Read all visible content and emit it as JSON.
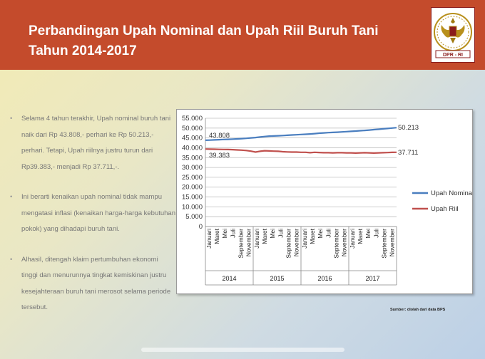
{
  "slide": {
    "title_line1": "Perbandingan Upah Nominal dan Upah Riil Buruh Tani",
    "title_line2": "Tahun 2014-2017",
    "logo_text": "DPR - RI",
    "bullet_symbol": "•",
    "bullets": [
      "Selama 4 tahun terakhir, Upah nominal buruh tani naik dari Rp 43.808,- perhari ke Rp 50.213,- perhari. Tetapi, Upah riilnya justru turun dari Rp39.383,- menjadi Rp 37.711,-.",
      "Ini berarti kenaikan upah nominal tidak mampu mengatasi inflasi (kenaikan harga-harga kebutuhan pokok) yang dihadapi buruh tani.",
      "Alhasil, ditengah klaim pertumbuhan ekonomi tinggi dan menurunnya tingkat kemiskinan justru kesejahteraan buruh tani merosot selama periode tersebut."
    ],
    "source": "Sumber: diolah dari data BPS"
  },
  "colors": {
    "header": "#c44b2c",
    "nominal": "#4a7ebf",
    "riil": "#c0504d"
  },
  "chart_data": {
    "type": "line",
    "years": [
      "2014",
      "2015",
      "2016",
      "2017"
    ],
    "month_ticks": [
      "Januari",
      "Maret",
      "Mei",
      "Juli",
      "September",
      "November"
    ],
    "ylim": [
      0,
      55000
    ],
    "yticks": [
      "0",
      "5.000",
      "10.000",
      "15.000",
      "20.000",
      "25.000",
      "30.000",
      "35.000",
      "40.000",
      "45.000",
      "50.000",
      "55.000"
    ],
    "grid": true,
    "legend_position": "right",
    "series": [
      {
        "name": "Upah Nominal",
        "color": "#4a7ebf",
        "start_label": "43.808",
        "end_label": "50.213",
        "values": [
          43808,
          43900,
          44000,
          44100,
          44200,
          44300,
          44400,
          44500,
          44650,
          44800,
          45000,
          45200,
          45500,
          45700,
          45900,
          46000,
          46100,
          46200,
          46350,
          46500,
          46600,
          46750,
          46850,
          47000,
          47200,
          47400,
          47550,
          47700,
          47800,
          47900,
          48050,
          48200,
          48350,
          48500,
          48650,
          48800,
          49000,
          49200,
          49400,
          49600,
          49800,
          50000,
          50213
        ]
      },
      {
        "name": "Upah Riil",
        "color": "#c0504d",
        "start_label": "39.383",
        "end_label": "37.711",
        "values": [
          39383,
          39300,
          39250,
          39200,
          39150,
          39100,
          39050,
          38900,
          38800,
          38600,
          38300,
          37800,
          38200,
          38500,
          38400,
          38300,
          38200,
          38000,
          37900,
          37800,
          37800,
          37700,
          37700,
          37500,
          37700,
          37600,
          37500,
          37500,
          37400,
          37500,
          37500,
          37400,
          37400,
          37300,
          37400,
          37500,
          37400,
          37300,
          37400,
          37500,
          37550,
          37650,
          37711
        ]
      }
    ]
  }
}
